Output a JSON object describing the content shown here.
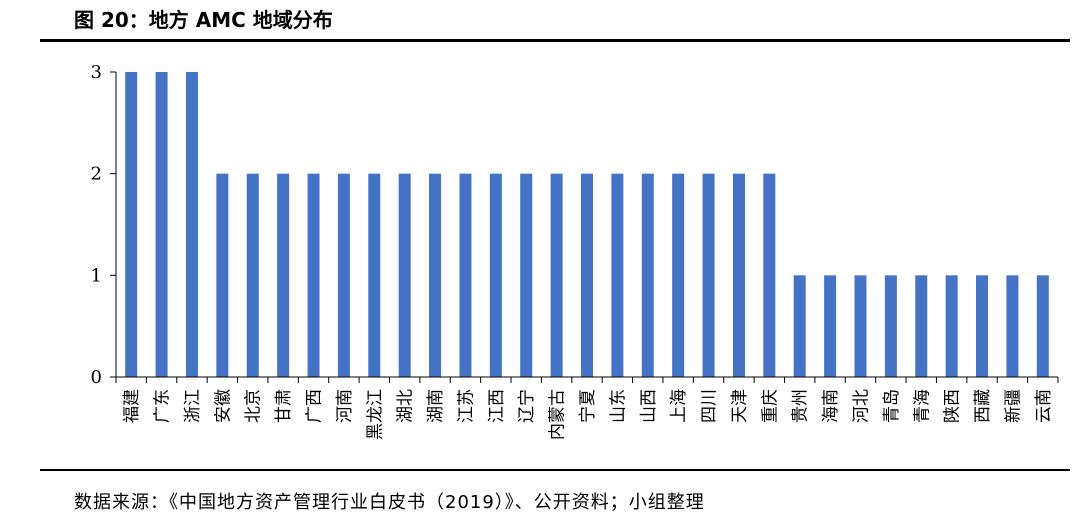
{
  "header": {
    "title": "图 20：地方 AMC 地域分布"
  },
  "footer": {
    "source": "数据来源：《中国地方资产管理行业白皮书（2019）》、公开资料；小组整理"
  },
  "chart_data": {
    "type": "bar",
    "title": "图 20：地方 AMC 地域分布",
    "xlabel": "",
    "ylabel": "",
    "ylim": [
      0,
      3
    ],
    "yticks": [
      0,
      1,
      2,
      3
    ],
    "grid": false,
    "legend": "none",
    "bar_color": "#4472C4",
    "categories": [
      "福建",
      "广东",
      "浙江",
      "安徽",
      "北京",
      "甘肃",
      "广西",
      "河南",
      "黑龙江",
      "湖北",
      "湖南",
      "江苏",
      "江西",
      "辽宁",
      "内蒙古",
      "宁夏",
      "山东",
      "山西",
      "上海",
      "四川",
      "天津",
      "重庆",
      "贵州",
      "海南",
      "河北",
      "青岛",
      "青海",
      "陕西",
      "西藏",
      "新疆",
      "云南"
    ],
    "values": [
      3,
      3,
      3,
      2,
      2,
      2,
      2,
      2,
      2,
      2,
      2,
      2,
      2,
      2,
      2,
      2,
      2,
      2,
      2,
      2,
      2,
      2,
      1,
      1,
      1,
      1,
      1,
      1,
      1,
      1,
      1
    ]
  }
}
